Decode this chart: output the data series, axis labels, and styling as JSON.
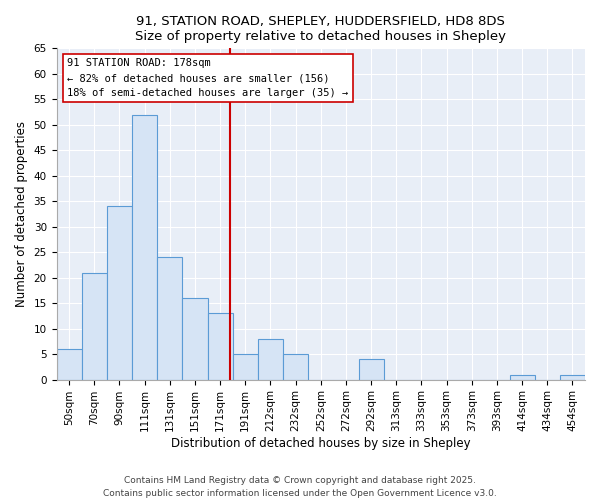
{
  "title_line1": "91, STATION ROAD, SHEPLEY, HUDDERSFIELD, HD8 8DS",
  "title_line2": "Size of property relative to detached houses in Shepley",
  "xlabel": "Distribution of detached houses by size in Shepley",
  "ylabel": "Number of detached properties",
  "bar_labels": [
    "50sqm",
    "70sqm",
    "90sqm",
    "111sqm",
    "131sqm",
    "151sqm",
    "171sqm",
    "191sqm",
    "212sqm",
    "232sqm",
    "252sqm",
    "272sqm",
    "292sqm",
    "313sqm",
    "333sqm",
    "353sqm",
    "373sqm",
    "393sqm",
    "414sqm",
    "434sqm",
    "454sqm"
  ],
  "bar_heights": [
    6,
    21,
    34,
    52,
    24,
    16,
    13,
    5,
    8,
    5,
    0,
    0,
    4,
    0,
    0,
    0,
    0,
    0,
    1,
    0,
    1
  ],
  "bar_color": "#d6e4f5",
  "bar_edge_color": "#5b9bd5",
  "vline_color": "#cc0000",
  "annotation_title": "91 STATION ROAD: 178sqm",
  "annotation_line1": "← 82% of detached houses are smaller (156)",
  "annotation_line2": "18% of semi-detached houses are larger (35) →",
  "annotation_box_color": "#ffffff",
  "annotation_box_edge": "#cc0000",
  "ylim": [
    0,
    65
  ],
  "yticks": [
    0,
    5,
    10,
    15,
    20,
    25,
    30,
    35,
    40,
    45,
    50,
    55,
    60,
    65
  ],
  "footer_line1": "Contains HM Land Registry data © Crown copyright and database right 2025.",
  "footer_line2": "Contains public sector information licensed under the Open Government Licence v3.0.",
  "fig_bg_color": "#ffffff",
  "plot_bg_color": "#e8eef7",
  "grid_color": "#ffffff",
  "title_fontsize": 9.5,
  "axis_label_fontsize": 8.5,
  "tick_fontsize": 7.5,
  "footer_fontsize": 6.5,
  "annotation_fontsize": 7.5
}
